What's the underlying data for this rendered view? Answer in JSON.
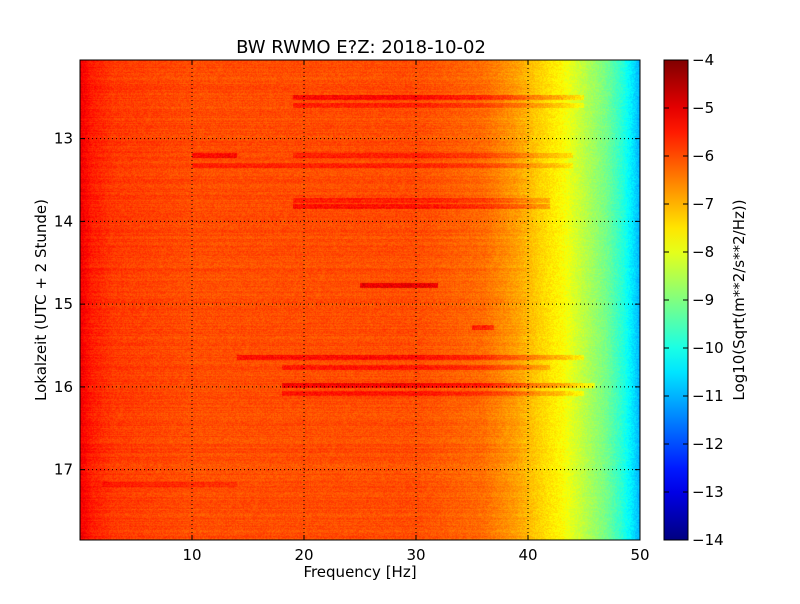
{
  "chart_data": {
    "type": "heatmap",
    "title": "BW RWMO E?Z: 2018-10-02",
    "xlabel": "Frequency [Hz]",
    "ylabel": "Lokalzeit (UTC + 2 Stunde)",
    "xlim": [
      0,
      50
    ],
    "ylim": [
      17.85,
      12.05
    ],
    "y_inverted": true,
    "xticks": [
      {
        "value": 10,
        "label": "10"
      },
      {
        "value": 20,
        "label": "20"
      },
      {
        "value": 30,
        "label": "30"
      },
      {
        "value": 40,
        "label": "40"
      },
      {
        "value": 50,
        "label": "50"
      }
    ],
    "yticks": [
      {
        "value": 13,
        "label": "13"
      },
      {
        "value": 14,
        "label": "14"
      },
      {
        "value": 15,
        "label": "15"
      },
      {
        "value": 16,
        "label": "16"
      },
      {
        "value": 17,
        "label": "17"
      }
    ],
    "grid": true,
    "colormap": "jet",
    "colorbar": {
      "label": "Log10(Sqrt(m**2/s**2/Hz))",
      "range": [
        -14,
        -4
      ],
      "ticks": [
        {
          "value": -4,
          "label": "−4"
        },
        {
          "value": -5,
          "label": "−5"
        },
        {
          "value": -6,
          "label": "−6"
        },
        {
          "value": -7,
          "label": "−7"
        },
        {
          "value": -8,
          "label": "−8"
        },
        {
          "value": -9,
          "label": "−9"
        },
        {
          "value": -10,
          "label": "−10"
        },
        {
          "value": -11,
          "label": "−11"
        },
        {
          "value": -12,
          "label": "−12"
        },
        {
          "value": -13,
          "label": "−13"
        },
        {
          "value": -14,
          "label": "−14"
        }
      ]
    },
    "spectral_profile": [
      {
        "freq": 0.0,
        "value": -5.1
      },
      {
        "freq": 1.0,
        "value": -5.5
      },
      {
        "freq": 3.0,
        "value": -5.8
      },
      {
        "freq": 10.0,
        "value": -6.0
      },
      {
        "freq": 30.0,
        "value": -6.0
      },
      {
        "freq": 36.0,
        "value": -6.3
      },
      {
        "freq": 39.0,
        "value": -6.8
      },
      {
        "freq": 41.0,
        "value": -7.3
      },
      {
        "freq": 43.0,
        "value": -7.7
      },
      {
        "freq": 45.0,
        "value": -8.4
      },
      {
        "freq": 47.0,
        "value": -9.1
      },
      {
        "freq": 48.5,
        "value": -9.9
      },
      {
        "freq": 49.5,
        "value": -10.6
      },
      {
        "freq": 50.0,
        "value": -11.0
      }
    ],
    "bands": [
      {
        "time": 12.5,
        "f0": 19,
        "f1": 45,
        "delta": 0.9
      },
      {
        "time": 12.6,
        "f0": 19,
        "f1": 45,
        "delta": 0.6
      },
      {
        "time": 13.2,
        "f0": 10,
        "f1": 14,
        "delta": 0.9
      },
      {
        "time": 13.2,
        "f0": 19,
        "f1": 44,
        "delta": 0.6
      },
      {
        "time": 13.33,
        "f0": 10,
        "f1": 44,
        "delta": 0.5
      },
      {
        "time": 13.75,
        "f0": 19,
        "f1": 42,
        "delta": 0.6
      },
      {
        "time": 13.82,
        "f0": 19,
        "f1": 42,
        "delta": 0.8
      },
      {
        "time": 14.78,
        "f0": 25,
        "f1": 32,
        "delta": 1.2
      },
      {
        "time": 15.28,
        "f0": 35,
        "f1": 37,
        "delta": 0.9
      },
      {
        "time": 15.65,
        "f0": 14,
        "f1": 45,
        "delta": 0.8
      },
      {
        "time": 15.76,
        "f0": 18,
        "f1": 42,
        "delta": 0.6
      },
      {
        "time": 15.98,
        "f0": 18,
        "f1": 46,
        "delta": 1.0
      },
      {
        "time": 16.08,
        "f0": 18,
        "f1": 45,
        "delta": 0.7
      },
      {
        "time": 17.18,
        "f0": 2,
        "f1": 14,
        "delta": 0.4
      }
    ]
  }
}
